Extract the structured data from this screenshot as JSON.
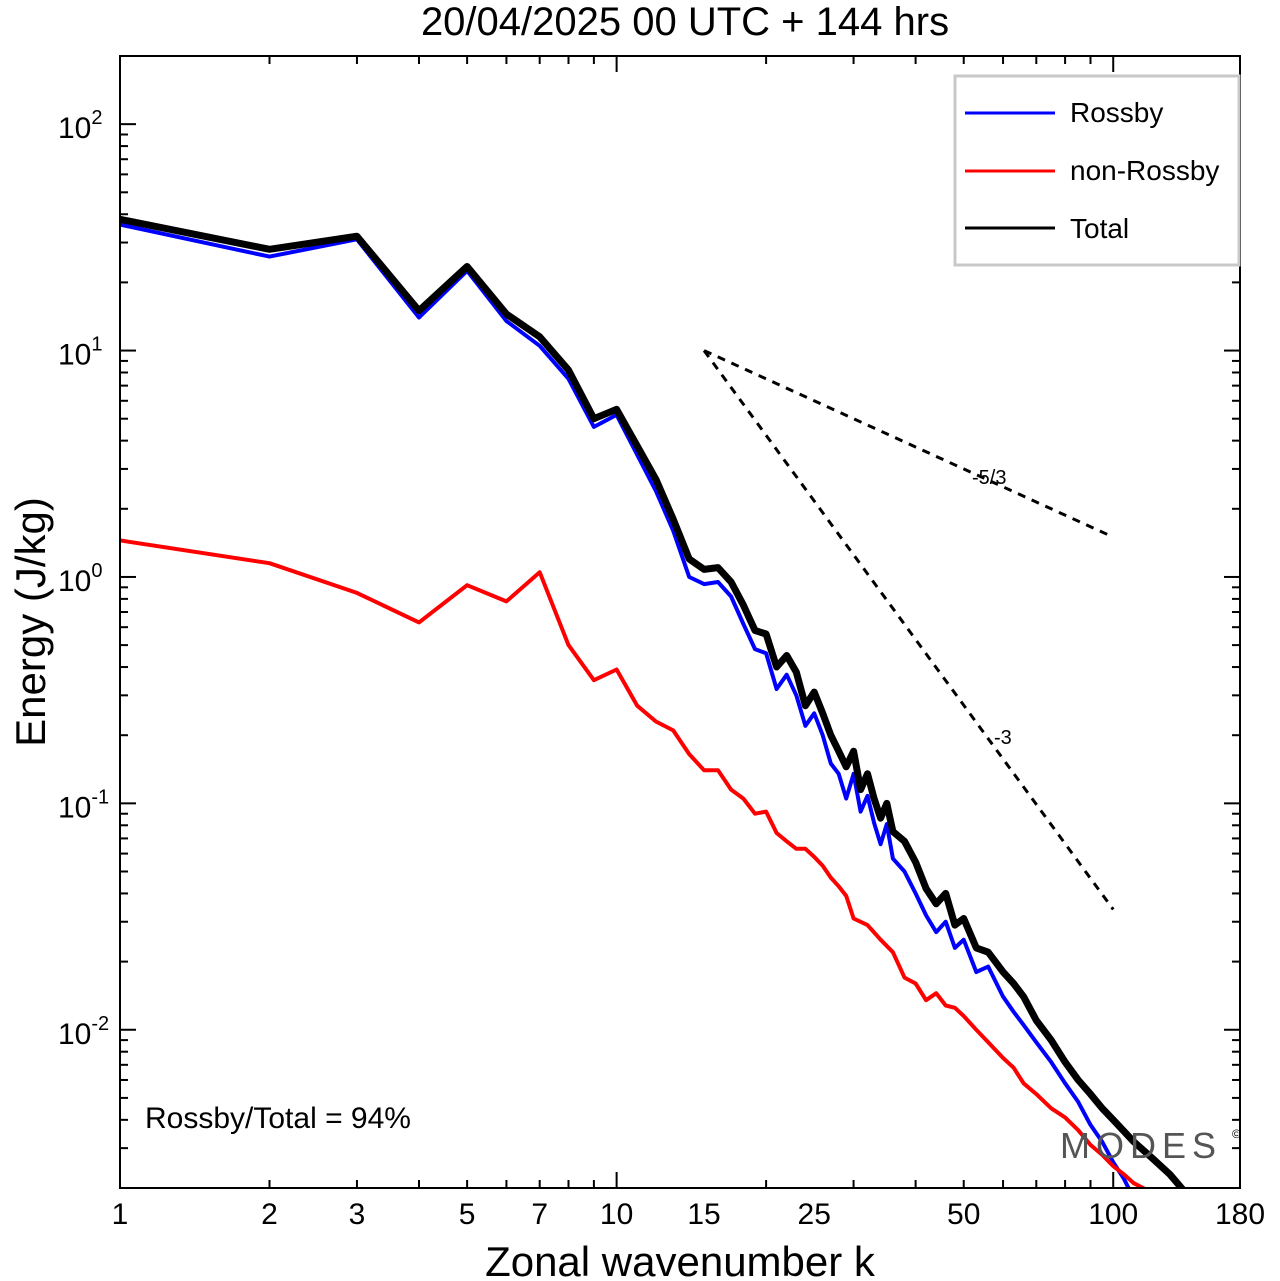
{
  "chart_data": {
    "type": "line",
    "title": "20/04/2025  00 UTC  + 144 hrs",
    "xlabel": "Zonal wavenumber k",
    "ylabel": "Energy (J/kg)",
    "xscale": "log",
    "yscale": "log",
    "xlim": [
      1,
      180
    ],
    "ylim": [
      0.002,
      200
    ],
    "x_ticks": [
      1,
      2,
      3,
      5,
      7,
      10,
      15,
      25,
      50,
      100,
      180
    ],
    "x_tick_labels": [
      "1",
      "2",
      "3",
      "5",
      "7",
      "10",
      "15",
      "25",
      "50",
      "100",
      "180"
    ],
    "y_ticks": [
      0.01,
      0.1,
      1,
      10,
      100
    ],
    "y_tick_labels": [
      {
        "base": "10",
        "exp": "-2"
      },
      {
        "base": "10",
        "exp": "-1"
      },
      {
        "base": "10",
        "exp": "0"
      },
      {
        "base": "10",
        "exp": "1"
      },
      {
        "base": "10",
        "exp": "2"
      }
    ],
    "grid": false,
    "legend_position": "top-right",
    "series": [
      {
        "name": "Rossby",
        "color": "#0000ff",
        "x": [
          1,
          2,
          3,
          4,
          5,
          6,
          7,
          8,
          9,
          10,
          12,
          13,
          14,
          15,
          16,
          17,
          18,
          19,
          20,
          21,
          22,
          23,
          24,
          25,
          26,
          27,
          28,
          29,
          30,
          31,
          32,
          33,
          34,
          35,
          36,
          38,
          40,
          42,
          44,
          46,
          48,
          50,
          53,
          56,
          60,
          63,
          66,
          70,
          75,
          80,
          85,
          90,
          95,
          100,
          105,
          110
        ],
        "values": [
          36,
          26,
          31,
          14,
          22.5,
          13.5,
          10.5,
          7.5,
          4.6,
          5.2,
          2.4,
          1.6,
          1.0,
          0.93,
          0.95,
          0.82,
          0.62,
          0.48,
          0.46,
          0.32,
          0.37,
          0.3,
          0.22,
          0.25,
          0.2,
          0.15,
          0.135,
          0.105,
          0.135,
          0.092,
          0.108,
          0.082,
          0.066,
          0.081,
          0.057,
          0.05,
          0.04,
          0.032,
          0.027,
          0.03,
          0.023,
          0.025,
          0.018,
          0.019,
          0.014,
          0.012,
          0.0105,
          0.0088,
          0.0072,
          0.0058,
          0.0048,
          0.0038,
          0.0032,
          0.0026,
          0.0022,
          0.0018
        ]
      },
      {
        "name": "non-Rossby",
        "color": "#ff0000",
        "x": [
          1,
          2,
          3,
          4,
          5,
          6,
          7,
          8,
          9,
          10,
          11,
          12,
          13,
          14,
          15,
          16,
          17,
          18,
          19,
          20,
          21,
          22,
          23,
          24,
          25,
          26,
          27,
          28,
          29,
          30,
          32,
          34,
          36,
          38,
          40,
          42,
          44,
          46,
          48,
          50,
          53,
          56,
          60,
          63,
          66,
          70,
          75,
          80,
          85,
          90,
          95,
          100,
          105,
          110,
          120,
          130
        ],
        "values": [
          1.45,
          1.15,
          0.85,
          0.63,
          0.92,
          0.78,
          1.05,
          0.5,
          0.35,
          0.39,
          0.27,
          0.23,
          0.21,
          0.165,
          0.14,
          0.14,
          0.115,
          0.105,
          0.09,
          0.092,
          0.074,
          0.068,
          0.063,
          0.063,
          0.058,
          0.053,
          0.047,
          0.043,
          0.039,
          0.031,
          0.029,
          0.025,
          0.022,
          0.017,
          0.016,
          0.0135,
          0.0145,
          0.0128,
          0.0125,
          0.0115,
          0.01,
          0.0088,
          0.0075,
          0.0068,
          0.0058,
          0.0052,
          0.0045,
          0.0041,
          0.0036,
          0.0031,
          0.0028,
          0.0025,
          0.0023,
          0.0021,
          0.0019,
          0.0017
        ]
      },
      {
        "name": "Total",
        "color": "#000000",
        "x": [
          1,
          2,
          3,
          4,
          5,
          6,
          7,
          8,
          9,
          10,
          12,
          13,
          14,
          15,
          16,
          17,
          18,
          19,
          20,
          21,
          22,
          23,
          24,
          25,
          26,
          27,
          28,
          29,
          30,
          31,
          32,
          33,
          34,
          35,
          36,
          38,
          40,
          42,
          44,
          46,
          48,
          50,
          53,
          56,
          60,
          63,
          66,
          70,
          75,
          80,
          85,
          90,
          95,
          100,
          110,
          120,
          130,
          140,
          150
        ],
        "values": [
          38,
          28,
          32,
          15,
          23.5,
          14.5,
          11.5,
          8.2,
          5,
          5.5,
          2.7,
          1.8,
          1.2,
          1.08,
          1.1,
          0.95,
          0.75,
          0.58,
          0.56,
          0.4,
          0.45,
          0.38,
          0.27,
          0.31,
          0.25,
          0.2,
          0.17,
          0.145,
          0.17,
          0.115,
          0.135,
          0.105,
          0.086,
          0.1,
          0.075,
          0.068,
          0.055,
          0.042,
          0.036,
          0.04,
          0.029,
          0.031,
          0.023,
          0.022,
          0.018,
          0.016,
          0.014,
          0.011,
          0.009,
          0.0072,
          0.006,
          0.0052,
          0.0045,
          0.004,
          0.0032,
          0.0027,
          0.0023,
          0.0019,
          0.0017
        ]
      }
    ],
    "reference_lines": [
      {
        "label": "-5/3",
        "x": [
          15,
          100
        ],
        "y": [
          10,
          1.5
        ],
        "style": "dashed"
      },
      {
        "label": "-3",
        "x": [
          15,
          100
        ],
        "y": [
          10,
          0.034
        ],
        "style": "dashed"
      }
    ],
    "annotations": [
      {
        "text": "Rossby/Total = 94%"
      }
    ],
    "logo": "MODES"
  }
}
